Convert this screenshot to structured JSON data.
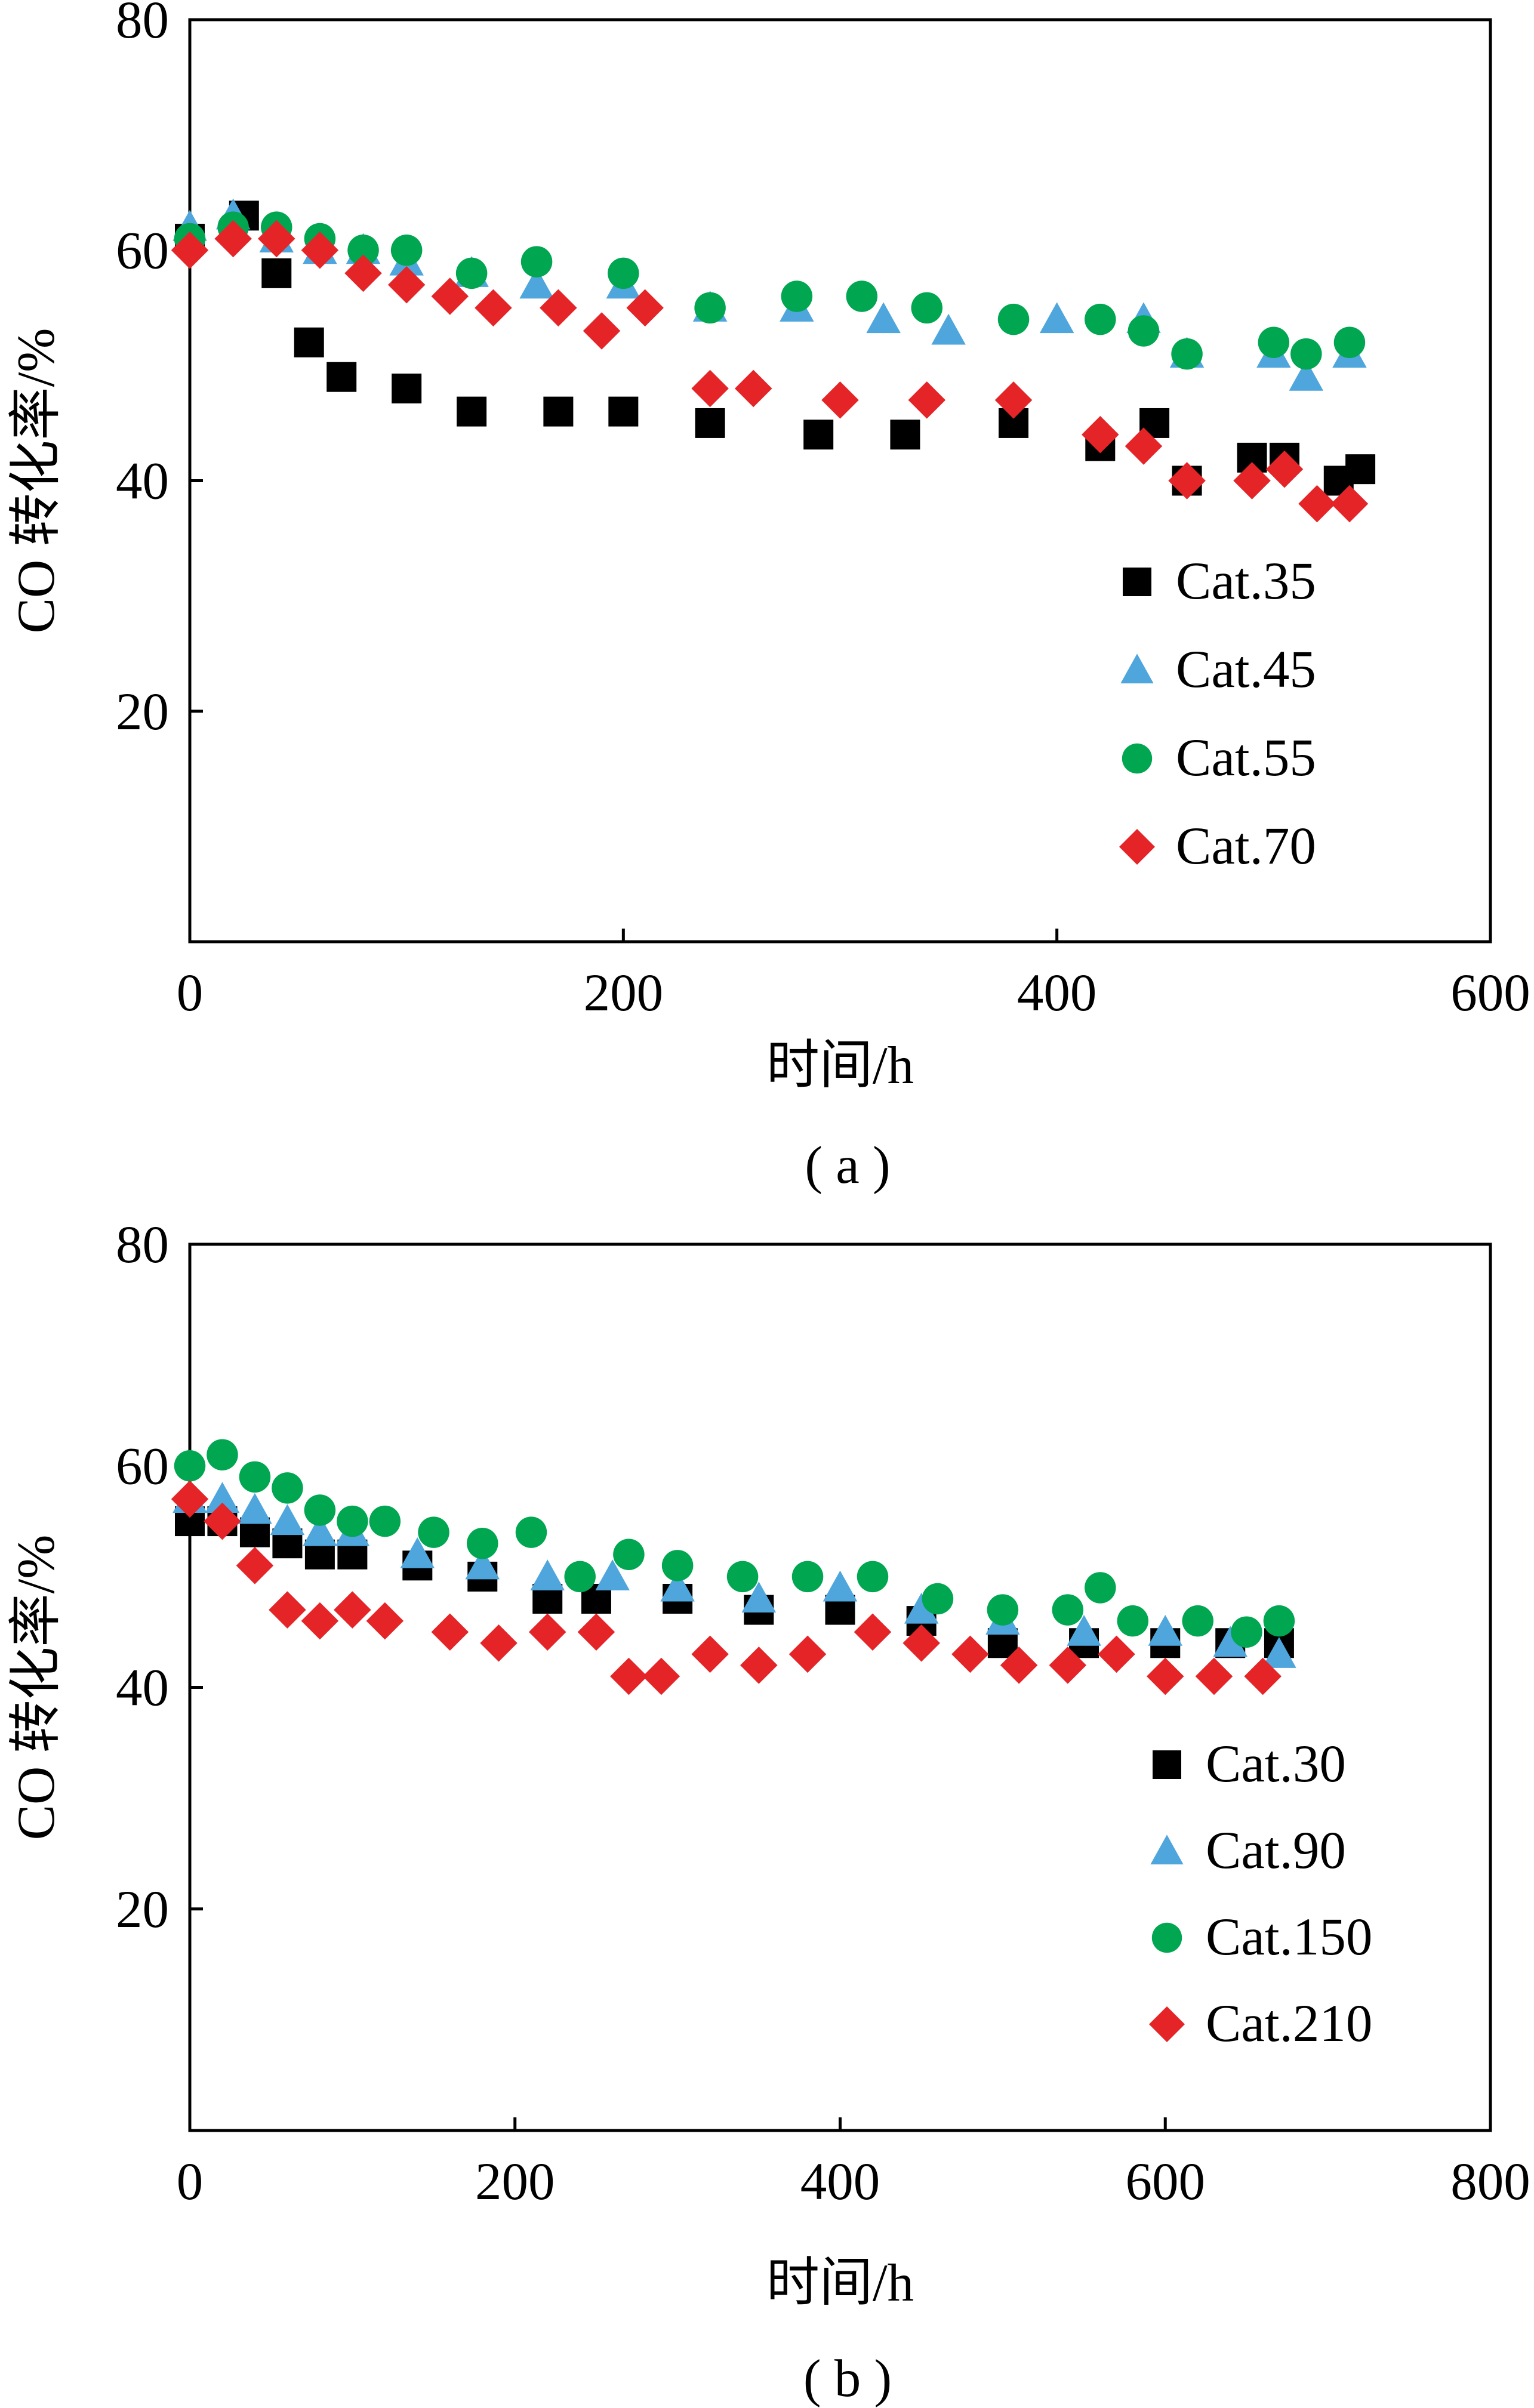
{
  "chart_data": [
    {
      "type": "scatter",
      "panel_label": "( a )",
      "title": "",
      "xlabel": "时间/h",
      "ylabel": "CO 转化率/%",
      "xlim": [
        0,
        600
      ],
      "ylim": [
        0,
        80
      ],
      "xticks": [
        0,
        200,
        400,
        600
      ],
      "xtick_labels": [
        "0",
        "200",
        "400",
        "600"
      ],
      "yticks": [
        20,
        40,
        60,
        80
      ],
      "ytick_labels": [
        "20",
        "40",
        "60",
        "80"
      ],
      "grid": false,
      "legend_position": "bottom-right",
      "series": [
        {
          "name": "Cat.35",
          "marker": "square",
          "color": "#000000",
          "x": [
            0,
            25,
            40,
            55,
            70,
            100,
            130,
            170,
            200,
            240,
            290,
            330,
            380,
            420,
            445,
            460,
            490,
            505,
            530,
            540
          ],
          "y": [
            61,
            63,
            58,
            52,
            49,
            48,
            46,
            46,
            46,
            45,
            44,
            44,
            45,
            43,
            45,
            40,
            42,
            42,
            40,
            41
          ]
        },
        {
          "name": "Cat.45",
          "marker": "triangle",
          "color": "#4ea6dc",
          "x": [
            0,
            20,
            40,
            60,
            80,
            100,
            130,
            160,
            200,
            240,
            280,
            320,
            350,
            400,
            440,
            460,
            500,
            515,
            535
          ],
          "y": [
            62,
            63,
            61,
            60,
            60,
            59,
            58,
            57,
            57,
            55,
            55,
            54,
            53,
            54,
            54,
            51,
            51,
            49,
            51
          ]
        },
        {
          "name": "Cat.55",
          "marker": "circle",
          "color": "#00a650",
          "x": [
            0,
            20,
            40,
            60,
            80,
            100,
            130,
            160,
            200,
            240,
            280,
            310,
            340,
            380,
            420,
            440,
            460,
            500,
            515,
            535
          ],
          "y": [
            61,
            62,
            62,
            61,
            60,
            60,
            58,
            59,
            58,
            55,
            56,
            56,
            55,
            54,
            54,
            53,
            51,
            52,
            51,
            52
          ]
        },
        {
          "name": "Cat.70",
          "marker": "diamond",
          "color": "#e52428",
          "x": [
            0,
            20,
            40,
            60,
            80,
            100,
            120,
            140,
            170,
            190,
            210,
            240,
            260,
            300,
            340,
            380,
            420,
            440,
            460,
            490,
            505,
            520,
            535
          ],
          "y": [
            60,
            61,
            61,
            60,
            58,
            57,
            56,
            55,
            55,
            53,
            55,
            48,
            48,
            47,
            47,
            47,
            44,
            43,
            40,
            40,
            41,
            38,
            38
          ]
        }
      ]
    },
    {
      "type": "scatter",
      "panel_label": "( b )",
      "title": "",
      "xlabel": "时间/h",
      "ylabel": "CO 转化率/%",
      "xlim": [
        0,
        800
      ],
      "ylim": [
        0,
        80
      ],
      "xticks": [
        0,
        200,
        400,
        600,
        800
      ],
      "xtick_labels": [
        "0",
        "200",
        "400",
        "600",
        "800"
      ],
      "yticks": [
        20,
        40,
        60,
        80
      ],
      "ytick_labels": [
        "20",
        "40",
        "60",
        "80"
      ],
      "grid": false,
      "legend_position": "bottom-right",
      "series": [
        {
          "name": "Cat.30",
          "marker": "square",
          "color": "#000000",
          "x": [
            0,
            20,
            40,
            60,
            80,
            100,
            140,
            180,
            220,
            250,
            300,
            350,
            400,
            450,
            500,
            550,
            600,
            640,
            670
          ],
          "y": [
            55,
            55,
            54,
            53,
            52,
            52,
            51,
            50,
            48,
            48,
            48,
            47,
            47,
            46,
            44,
            44,
            44,
            44,
            44
          ]
        },
        {
          "name": "Cat.90",
          "marker": "triangle",
          "color": "#4ea6dc",
          "x": [
            0,
            20,
            40,
            60,
            80,
            100,
            140,
            180,
            220,
            260,
            300,
            350,
            400,
            450,
            500,
            550,
            600,
            640,
            670
          ],
          "y": [
            57,
            57,
            56,
            55,
            54,
            54,
            52,
            51,
            50,
            50,
            49,
            48,
            49,
            47,
            46,
            45,
            45,
            44,
            43
          ]
        },
        {
          "name": "Cat.150",
          "marker": "circle",
          "color": "#00a650",
          "x": [
            0,
            20,
            40,
            60,
            80,
            100,
            120,
            150,
            180,
            210,
            240,
            270,
            300,
            340,
            380,
            420,
            460,
            500,
            540,
            560,
            580,
            620,
            650,
            670
          ],
          "y": [
            60,
            61,
            59,
            58,
            56,
            55,
            55,
            54,
            53,
            54,
            50,
            52,
            51,
            50,
            50,
            50,
            48,
            47,
            47,
            49,
            46,
            46,
            45,
            46
          ]
        },
        {
          "name": "Cat.210",
          "marker": "diamond",
          "color": "#e52428",
          "x": [
            0,
            20,
            40,
            60,
            80,
            100,
            120,
            160,
            190,
            220,
            250,
            270,
            290,
            320,
            350,
            380,
            420,
            450,
            480,
            510,
            540,
            570,
            600,
            630,
            660
          ],
          "y": [
            57,
            55,
            51,
            47,
            46,
            47,
            46,
            45,
            44,
            45,
            45,
            41,
            41,
            43,
            42,
            43,
            45,
            44,
            43,
            42,
            42,
            43,
            41,
            41,
            41
          ]
        }
      ]
    }
  ]
}
